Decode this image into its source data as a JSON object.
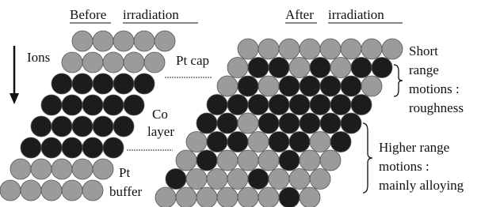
{
  "header": {
    "before": {
      "word1": "Before",
      "word2": "irradiation"
    },
    "after": {
      "word1": "After",
      "word2": "irradiation"
    }
  },
  "labels": {
    "ions": "Ions",
    "pt_cap": "Pt cap",
    "co_layer": [
      "Co",
      "layer"
    ],
    "pt_buffer": [
      "Pt",
      "buffer"
    ]
  },
  "annotations": {
    "short": [
      "Short",
      "range",
      "motions :",
      "roughness"
    ],
    "higher": [
      "Higher range",
      "motions :",
      "mainly alloying"
    ]
  }
}
